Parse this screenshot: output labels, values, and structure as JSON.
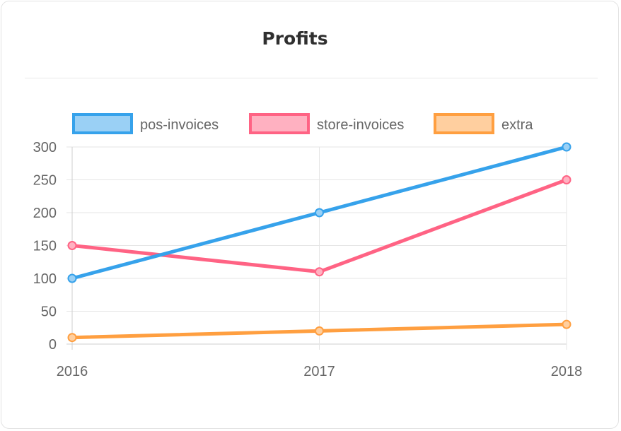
{
  "card": {
    "title": "Profits"
  },
  "chart_data": {
    "type": "line",
    "title": "Profits",
    "x": [
      "2016",
      "2017",
      "2018"
    ],
    "series": [
      {
        "name": "pos-invoices",
        "values": [
          100,
          200,
          300
        ],
        "color": "#36a2eb",
        "fill": "#9ad0f5"
      },
      {
        "name": "store-invoices",
        "values": [
          150,
          110,
          250
        ],
        "color": "#ff6384",
        "fill": "#ffb1c1"
      },
      {
        "name": "extra",
        "values": [
          10,
          20,
          30
        ],
        "color": "#ff9f40",
        "fill": "#ffcf9f"
      }
    ],
    "yticks": [
      0,
      50,
      100,
      150,
      200,
      250,
      300
    ],
    "ylim": [
      0,
      300
    ],
    "grid": true,
    "legend": "top"
  }
}
